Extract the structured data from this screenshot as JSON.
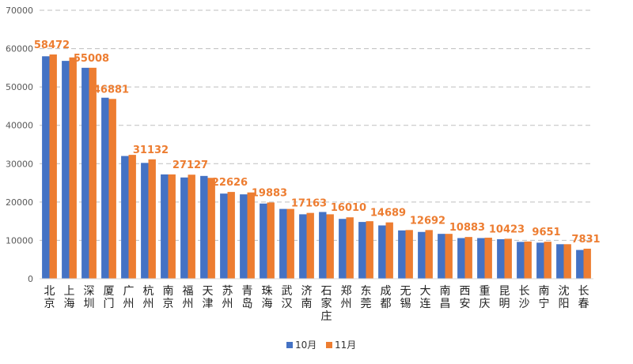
{
  "chart_data": {
    "type": "bar",
    "title": "",
    "xlabel": "",
    "ylabel": "",
    "ylim": [
      0,
      70000
    ],
    "yticks": [
      0,
      10000,
      20000,
      30000,
      40000,
      50000,
      60000,
      70000
    ],
    "grid": true,
    "legend_position": "bottom",
    "categories": [
      "北京",
      "上海",
      "深圳",
      "厦门",
      "广州",
      "杭州",
      "南京",
      "福州",
      "天津",
      "苏州",
      "青岛",
      "珠海",
      "武汉",
      "济南",
      "石家庄",
      "郑州",
      "东莞",
      "成都",
      "无锡",
      "大连",
      "南昌",
      "西安",
      "重庆",
      "昆明",
      "长沙",
      "南宁",
      "沈阳",
      "长春"
    ],
    "series": [
      {
        "name": "10月",
        "color": "#4472C4",
        "values": [
          58000,
          56800,
          55000,
          47200,
          32000,
          30200,
          27200,
          26400,
          26800,
          22200,
          22000,
          19600,
          18200,
          16800,
          17400,
          15600,
          14800,
          13900,
          12600,
          12200,
          11700,
          10600,
          10600,
          10300,
          9600,
          9400,
          9000,
          7500
        ]
      },
      {
        "name": "11月",
        "color": "#ED7D31",
        "values": [
          58472,
          57700,
          55008,
          46881,
          32300,
          31132,
          27200,
          27127,
          26300,
          22626,
          22500,
          19883,
          18200,
          17163,
          16800,
          16010,
          15000,
          14689,
          12700,
          12692,
          11700,
          10883,
          10700,
          10423,
          9700,
          9651,
          9000,
          7831
        ]
      }
    ],
    "data_labels": [
      {
        "category": "北京",
        "series": "11月",
        "text": "58472"
      },
      {
        "category": "深圳",
        "series": "11月",
        "text": "55008"
      },
      {
        "category": "厦门",
        "series": "11月",
        "text": "46881"
      },
      {
        "category": "杭州",
        "series": "11月",
        "text": "31132"
      },
      {
        "category": "福州",
        "series": "11月",
        "text": "27127"
      },
      {
        "category": "苏州",
        "series": "11月",
        "text": "22626"
      },
      {
        "category": "珠海",
        "series": "11月",
        "text": "19883"
      },
      {
        "category": "济南",
        "series": "11月",
        "text": "17163"
      },
      {
        "category": "郑州",
        "series": "11月",
        "text": "16010"
      },
      {
        "category": "成都",
        "series": "11月",
        "text": "14689"
      },
      {
        "category": "大连",
        "series": "11月",
        "text": "12692"
      },
      {
        "category": "西安",
        "series": "11月",
        "text": "10883"
      },
      {
        "category": "昆明",
        "series": "11月",
        "text": "10423"
      },
      {
        "category": "南宁",
        "series": "11月",
        "text": "9651"
      },
      {
        "category": "长春",
        "series": "11月",
        "text": "7831"
      }
    ]
  }
}
